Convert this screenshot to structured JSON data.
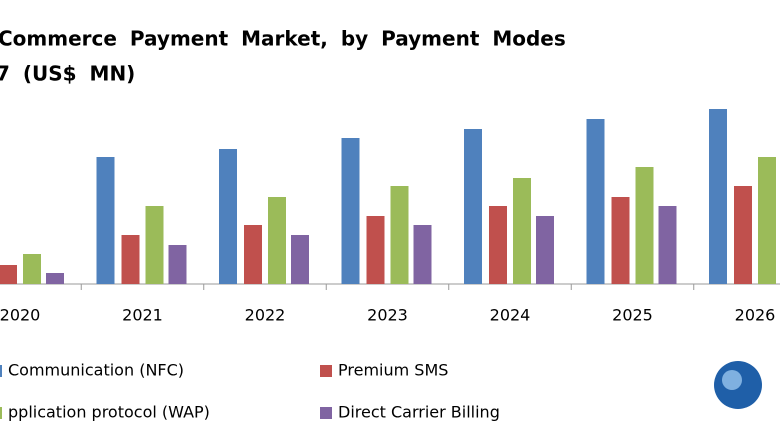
{
  "chart_data": {
    "type": "bar",
    "title": "Commerce Payment Market, by Payment Modes",
    "subtitle": "7 (US$ MN)",
    "categories": [
      "2020",
      "2021",
      "2022",
      "2023",
      "2024",
      "2025",
      "2026"
    ],
    "series": [
      {
        "name": "Communication (NFC)",
        "color": "#4f81bd",
        "values": [
          null,
          127,
          135,
          146,
          155,
          165,
          175
        ]
      },
      {
        "name": "Premium SMS",
        "color": "#c0504d",
        "values": [
          19,
          49,
          59,
          68,
          78,
          87,
          98
        ]
      },
      {
        "name": "pplication protocol (WAP)",
        "color": "#9bbb59",
        "values": [
          30,
          78,
          87,
          98,
          106,
          117,
          127
        ]
      },
      {
        "name": "Direct Carrier Billing",
        "color": "#8064a2",
        "values": [
          11,
          39,
          49,
          59,
          68,
          78,
          null
        ]
      }
    ]
  }
}
